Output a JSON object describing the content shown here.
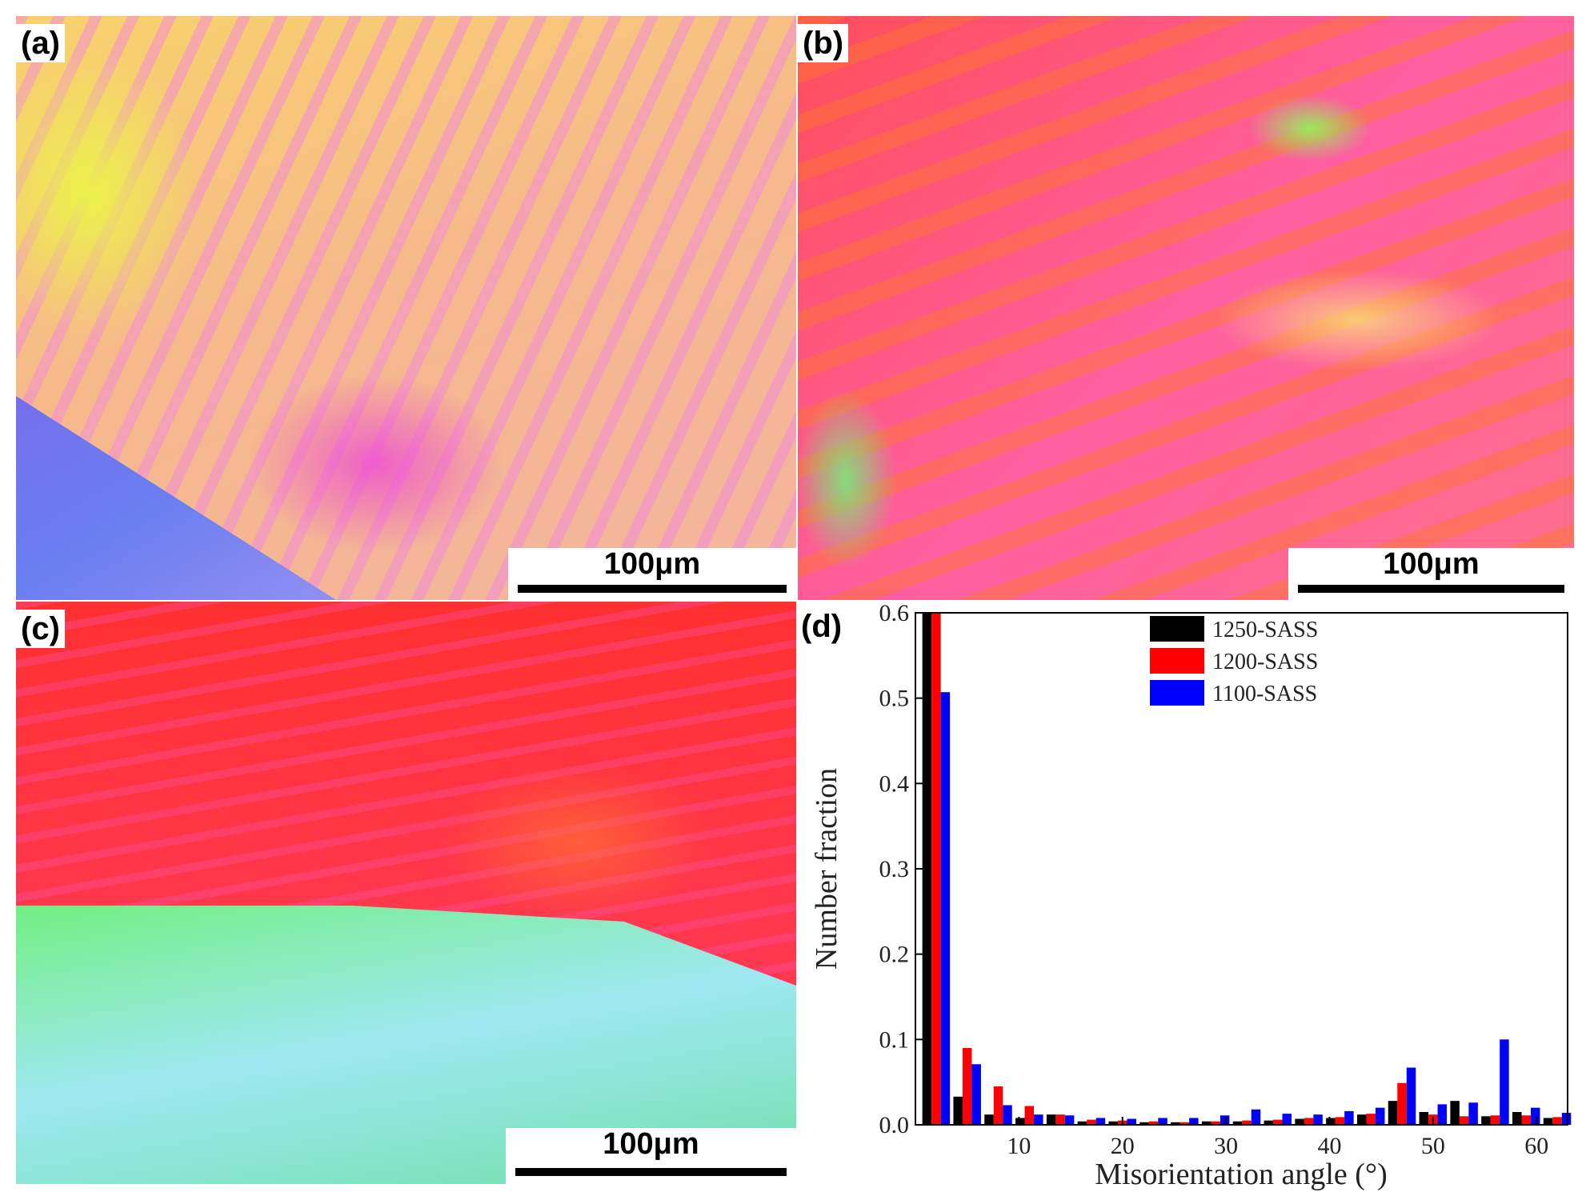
{
  "panels": {
    "a": {
      "label": "(a)",
      "scale": "100μm"
    },
    "b": {
      "label": "(b)",
      "scale": "100μm"
    },
    "c": {
      "label": "(c)",
      "scale": "100μm"
    },
    "d": {
      "label": "(d)"
    }
  },
  "chart_data": {
    "type": "bar",
    "xlabel": "Misorientation angle (°)",
    "ylabel": "Number fraction",
    "xlim": [
      0,
      63
    ],
    "ylim": [
      0,
      0.6
    ],
    "xticks": [
      10,
      20,
      30,
      40,
      50,
      60
    ],
    "yticks": [
      0.0,
      0.1,
      0.2,
      0.3,
      0.4,
      0.5,
      0.6
    ],
    "grid": false,
    "legend": "top-center",
    "x": [
      2,
      5,
      8,
      11,
      14,
      17,
      20,
      23,
      26,
      29,
      32,
      35,
      38,
      41,
      44,
      47,
      50,
      53,
      56,
      59,
      62
    ],
    "series": [
      {
        "name": "1250-SASS",
        "color": "#000000",
        "values": [
          0.6,
          0.033,
          0.012,
          0.008,
          0.012,
          0.004,
          0.004,
          0.003,
          0.003,
          0.004,
          0.004,
          0.005,
          0.007,
          0.008,
          0.012,
          0.028,
          0.015,
          0.028,
          0.01,
          0.015,
          0.008
        ]
      },
      {
        "name": "1200-SASS",
        "color": "#ff0000",
        "values": [
          0.6,
          0.09,
          0.045,
          0.022,
          0.012,
          0.006,
          0.005,
          0.004,
          0.003,
          0.004,
          0.005,
          0.006,
          0.008,
          0.009,
          0.013,
          0.049,
          0.012,
          0.01,
          0.011,
          0.011,
          0.009
        ]
      },
      {
        "name": "1100-SASS",
        "color": "#0000ff",
        "values": [
          0.507,
          0.071,
          0.023,
          0.012,
          0.011,
          0.008,
          0.007,
          0.008,
          0.008,
          0.011,
          0.018,
          0.013,
          0.012,
          0.016,
          0.02,
          0.067,
          0.024,
          0.026,
          0.1,
          0.02,
          0.014
        ]
      }
    ]
  }
}
